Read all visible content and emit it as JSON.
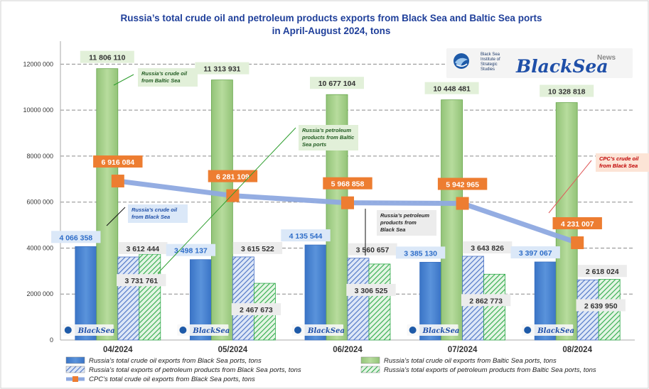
{
  "chart_data": {
    "type": "bar",
    "title": "Russia’s total crude oil and petroleum products exports from Black Sea and Baltic Sea ports in April-August 2024, tons",
    "title_lines": [
      "Russia’s total crude oil and petroleum products exports from Black Sea and Baltic Sea ports",
      "in April-August 2024, tons"
    ],
    "categories": [
      "04/2024",
      "05/2024",
      "06/2024",
      "07/2024",
      "08/2024"
    ],
    "ylim": [
      0,
      13000000
    ],
    "yticks": [
      0,
      2000000,
      4000000,
      6000000,
      8000000,
      10000000,
      12000000
    ],
    "ytick_labels": [
      "0",
      "2000 000",
      "4000 000",
      "6000 000",
      "8000 000",
      "10000 000",
      "12000 000"
    ],
    "grid": true,
    "legend_position": "bottom",
    "series": [
      {
        "name": "Russia’s total crude oil exports from Black Sea ports, tons",
        "type": "bar",
        "color": "#4a86d4",
        "values": [
          4066358,
          3498137,
          4135544,
          3385130,
          3397067
        ],
        "labels": [
          "4 066 358",
          "3 498 137",
          "4 135 544",
          "3 385 130",
          "3 397 067"
        ]
      },
      {
        "name": "Russia’s total crude oil exports from Baltic Sea ports, tons",
        "type": "bar",
        "color": "#a9d18e",
        "values": [
          11806110,
          11313931,
          10677104,
          10448481,
          10328818
        ],
        "labels": [
          "11 806 110",
          "11 313 931",
          "10 677 104",
          "10 448 481",
          "10 328 818"
        ]
      },
      {
        "name": "Russia’s total exports of petroleum products from Black Sea ports, tons",
        "type": "bar",
        "color": "#8faadc",
        "values": [
          3612444,
          3615522,
          3560657,
          3643826,
          2618024
        ],
        "labels": [
          "3 612 444",
          "3 615 522",
          "3 560 657",
          "3 643 826",
          "2 618 024"
        ]
      },
      {
        "name": "Russia’s total exports of petroleum products from Baltic Sea ports, tons",
        "type": "bar",
        "color": "#5bbf5b",
        "values": [
          3731761,
          2467673,
          3306525,
          2862773,
          2639950
        ],
        "labels": [
          "3 731 761",
          "2 467 673",
          "3 306 525",
          "2 862 773",
          "2 639 950"
        ]
      },
      {
        "name": "CPC’s total crude oil exports from Black Sea ports, tons",
        "type": "line",
        "color": "#8ea9e0",
        "marker_color": "#ed7d31",
        "values": [
          6916084,
          6281109,
          5968858,
          5942965,
          4231007
        ],
        "labels": [
          "6 916 084",
          "6 281 109",
          "5 968 858",
          "5 942 965",
          "4 231 007"
        ]
      }
    ],
    "annotations": [
      {
        "text": [
          "Russia’s crude oil",
          "from Baltic Sea"
        ]
      },
      {
        "text": [
          "Russia’s petroleum",
          "products from Baltic",
          "Sea ports"
        ]
      },
      {
        "text": [
          "Russia’s crude oil",
          "from Black Sea"
        ]
      },
      {
        "text": [
          "Russia’s petroleum",
          "products from",
          "Black Sea"
        ]
      },
      {
        "text": [
          "CPC’s crude oil",
          "from Black Sea"
        ]
      }
    ]
  },
  "logo": {
    "institute_lines": [
      "Black Sea",
      "Institute of",
      "Strategic",
      "Studies"
    ],
    "brand": "BlackSea",
    "brand_super": "News"
  }
}
